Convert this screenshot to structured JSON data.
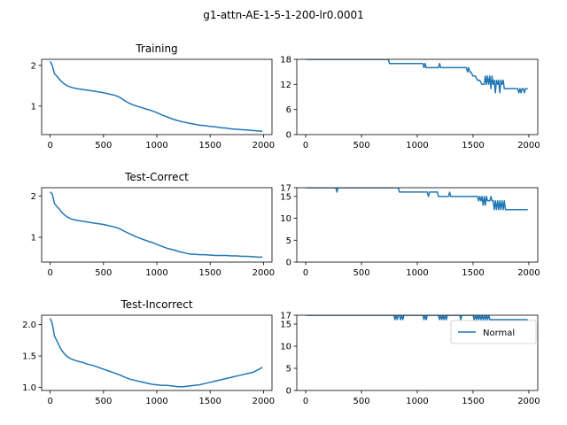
{
  "figure": {
    "suptitle": "g1-attn-AE-1-5-1-200-lr0.0001",
    "line_color": "#1f77b4"
  },
  "chart_data": [
    {
      "type": "line",
      "title": "Training",
      "xlim": [
        -80,
        2080
      ],
      "ylim": [
        0.3,
        2.15
      ],
      "xticks": [
        0,
        500,
        1000,
        1500,
        2000
      ],
      "yticks": [
        1,
        2
      ],
      "grid": false,
      "series": [
        {
          "x": [
            0,
            20,
            40,
            60,
            80,
            100,
            130,
            160,
            200,
            250,
            300,
            350,
            400,
            450,
            500,
            550,
            600,
            650,
            700,
            750,
            800,
            850,
            900,
            950,
            1000,
            1050,
            1100,
            1150,
            1200,
            1250,
            1300,
            1350,
            1400,
            1450,
            1500,
            1550,
            1600,
            1650,
            1700,
            1750,
            1800,
            1850,
            1900,
            1950,
            1990
          ],
          "y": [
            2.1,
            2.0,
            1.8,
            1.74,
            1.68,
            1.62,
            1.55,
            1.5,
            1.46,
            1.43,
            1.41,
            1.39,
            1.37,
            1.35,
            1.33,
            1.3,
            1.27,
            1.22,
            1.13,
            1.06,
            1.01,
            0.97,
            0.93,
            0.89,
            0.84,
            0.78,
            0.73,
            0.68,
            0.64,
            0.61,
            0.58,
            0.56,
            0.53,
            0.52,
            0.5,
            0.49,
            0.47,
            0.46,
            0.44,
            0.43,
            0.42,
            0.41,
            0.4,
            0.39,
            0.38
          ]
        }
      ]
    },
    {
      "type": "line",
      "title": "",
      "xlim": [
        -80,
        2080
      ],
      "ylim": [
        0,
        18
      ],
      "xticks": [
        0,
        500,
        1000,
        1500,
        2000
      ],
      "yticks": [
        0,
        6,
        12,
        18
      ],
      "grid": false,
      "series": [
        {
          "x": [
            0,
            740,
            750,
            760,
            1050,
            1060,
            1070,
            1080,
            1090,
            1100,
            1150,
            1190,
            1200,
            1210,
            1440,
            1450,
            1460,
            1470,
            1480,
            1500,
            1520,
            1540,
            1560,
            1580,
            1600,
            1610,
            1620,
            1630,
            1640,
            1650,
            1660,
            1670,
            1680,
            1690,
            1700,
            1710,
            1720,
            1730,
            1740,
            1750,
            1760,
            1770,
            1780,
            1790,
            1800,
            1900,
            1910,
            1920,
            1930,
            1940,
            1950,
            1960,
            1970,
            1980,
            1990
          ],
          "y": [
            18,
            18,
            17,
            17,
            17,
            16,
            17,
            16,
            16,
            16,
            16,
            16,
            17,
            16,
            16,
            15,
            16,
            15,
            15,
            14,
            14,
            13,
            13,
            12,
            12,
            14,
            12,
            14,
            12,
            14,
            11,
            14,
            12,
            13,
            10,
            13,
            12,
            13,
            10,
            13,
            12,
            13,
            11,
            11,
            11,
            11,
            10,
            11,
            10,
            11,
            11,
            10,
            11,
            11,
            11
          ]
        }
      ]
    },
    {
      "type": "line",
      "title": "Test-Correct",
      "xlim": [
        -80,
        2080
      ],
      "ylim": [
        0.4,
        2.2
      ],
      "xticks": [
        0,
        500,
        1000,
        1500,
        2000
      ],
      "yticks": [
        1,
        2
      ],
      "grid": false,
      "series": [
        {
          "x": [
            0,
            20,
            40,
            60,
            80,
            100,
            130,
            160,
            200,
            250,
            300,
            350,
            400,
            450,
            500,
            550,
            600,
            650,
            700,
            750,
            800,
            850,
            900,
            950,
            1000,
            1050,
            1100,
            1150,
            1200,
            1250,
            1300,
            1350,
            1400,
            1450,
            1500,
            1550,
            1600,
            1650,
            1700,
            1750,
            1800,
            1850,
            1900,
            1950,
            1990
          ],
          "y": [
            2.1,
            2.05,
            1.82,
            1.75,
            1.7,
            1.63,
            1.55,
            1.49,
            1.44,
            1.41,
            1.39,
            1.37,
            1.35,
            1.33,
            1.31,
            1.28,
            1.25,
            1.21,
            1.14,
            1.08,
            1.02,
            0.97,
            0.92,
            0.88,
            0.83,
            0.78,
            0.73,
            0.7,
            0.66,
            0.63,
            0.6,
            0.59,
            0.58,
            0.58,
            0.57,
            0.56,
            0.56,
            0.56,
            0.55,
            0.55,
            0.54,
            0.54,
            0.53,
            0.52,
            0.52
          ]
        }
      ]
    },
    {
      "type": "line",
      "title": "",
      "xlim": [
        -80,
        2080
      ],
      "ylim": [
        0,
        17
      ],
      "xticks": [
        0,
        500,
        1000,
        1500,
        2000
      ],
      "yticks": [
        0,
        5,
        10,
        15,
        17
      ],
      "grid": false,
      "series": [
        {
          "x": [
            0,
            270,
            280,
            290,
            300,
            830,
            840,
            850,
            1090,
            1100,
            1110,
            1180,
            1190,
            1200,
            1280,
            1290,
            1300,
            1540,
            1550,
            1560,
            1570,
            1580,
            1590,
            1600,
            1610,
            1620,
            1630,
            1640,
            1650,
            1660,
            1670,
            1680,
            1690,
            1700,
            1710,
            1720,
            1730,
            1740,
            1750,
            1760,
            1770,
            1780,
            1790,
            1800,
            1990
          ],
          "y": [
            17,
            17,
            16,
            17,
            17,
            17,
            16,
            16,
            16,
            15,
            16,
            16,
            15,
            15,
            15,
            16,
            15,
            15,
            14,
            15,
            14,
            15,
            13,
            15,
            13,
            15,
            14,
            14,
            14,
            15,
            14,
            14,
            12,
            14,
            12,
            14,
            12,
            14,
            12,
            14,
            12,
            14,
            12,
            12,
            12
          ]
        }
      ]
    },
    {
      "type": "line",
      "title": "Test-Incorrect",
      "xlim": [
        -80,
        2080
      ],
      "ylim": [
        0.95,
        2.15
      ],
      "xticks": [
        0,
        500,
        1000,
        1500,
        2000
      ],
      "yticks": [
        1.0,
        1.5,
        2.0
      ],
      "ytick_labels": [
        "1.0",
        "1.5",
        "2.0"
      ],
      "grid": false,
      "series": [
        {
          "x": [
            0,
            20,
            40,
            60,
            80,
            100,
            130,
            160,
            200,
            250,
            300,
            350,
            400,
            450,
            500,
            550,
            600,
            650,
            700,
            750,
            800,
            850,
            900,
            950,
            1000,
            1050,
            1100,
            1150,
            1200,
            1250,
            1300,
            1350,
            1400,
            1450,
            1500,
            1550,
            1600,
            1650,
            1700,
            1750,
            1800,
            1850,
            1900,
            1950,
            1990
          ],
          "y": [
            2.1,
            2.02,
            1.82,
            1.75,
            1.68,
            1.61,
            1.54,
            1.49,
            1.45,
            1.42,
            1.4,
            1.37,
            1.35,
            1.32,
            1.29,
            1.26,
            1.23,
            1.2,
            1.16,
            1.13,
            1.11,
            1.09,
            1.07,
            1.05,
            1.04,
            1.03,
            1.03,
            1.02,
            1.01,
            1.01,
            1.02,
            1.03,
            1.04,
            1.06,
            1.08,
            1.1,
            1.12,
            1.14,
            1.16,
            1.18,
            1.2,
            1.22,
            1.24,
            1.28,
            1.32
          ]
        }
      ]
    },
    {
      "type": "line",
      "title": "",
      "xlim": [
        -80,
        2080
      ],
      "ylim": [
        0,
        17
      ],
      "xticks": [
        0,
        500,
        1000,
        1500,
        2000
      ],
      "yticks": [
        0,
        5,
        10,
        15,
        17
      ],
      "legend": {
        "position": "upper-right",
        "labels": [
          "Normal"
        ]
      },
      "grid": false,
      "series": [
        {
          "name": "Normal",
          "x": [
            0,
            790,
            800,
            810,
            820,
            830,
            840,
            850,
            860,
            870,
            880,
            890,
            1050,
            1060,
            1070,
            1080,
            1090,
            1100,
            1190,
            1200,
            1210,
            1220,
            1230,
            1240,
            1250,
            1260,
            1270,
            1280,
            1380,
            1390,
            1400,
            1410,
            1500,
            1510,
            1520,
            1530,
            1540,
            1550,
            1560,
            1570,
            1580,
            1590,
            1600,
            1610,
            1620,
            1630,
            1640,
            1650,
            1700,
            1710,
            1720,
            1990
          ],
          "y": [
            17,
            17,
            16,
            17,
            16,
            17,
            17,
            16,
            17,
            16,
            17,
            17,
            17,
            16,
            17,
            16,
            17,
            17,
            17,
            16,
            17,
            16,
            17,
            16,
            17,
            16,
            17,
            17,
            17,
            16,
            17,
            17,
            17,
            16,
            17,
            16,
            17,
            16,
            17,
            16,
            17,
            16,
            17,
            16,
            17,
            16,
            17,
            16,
            16,
            16,
            16,
            16
          ]
        }
      ]
    }
  ]
}
